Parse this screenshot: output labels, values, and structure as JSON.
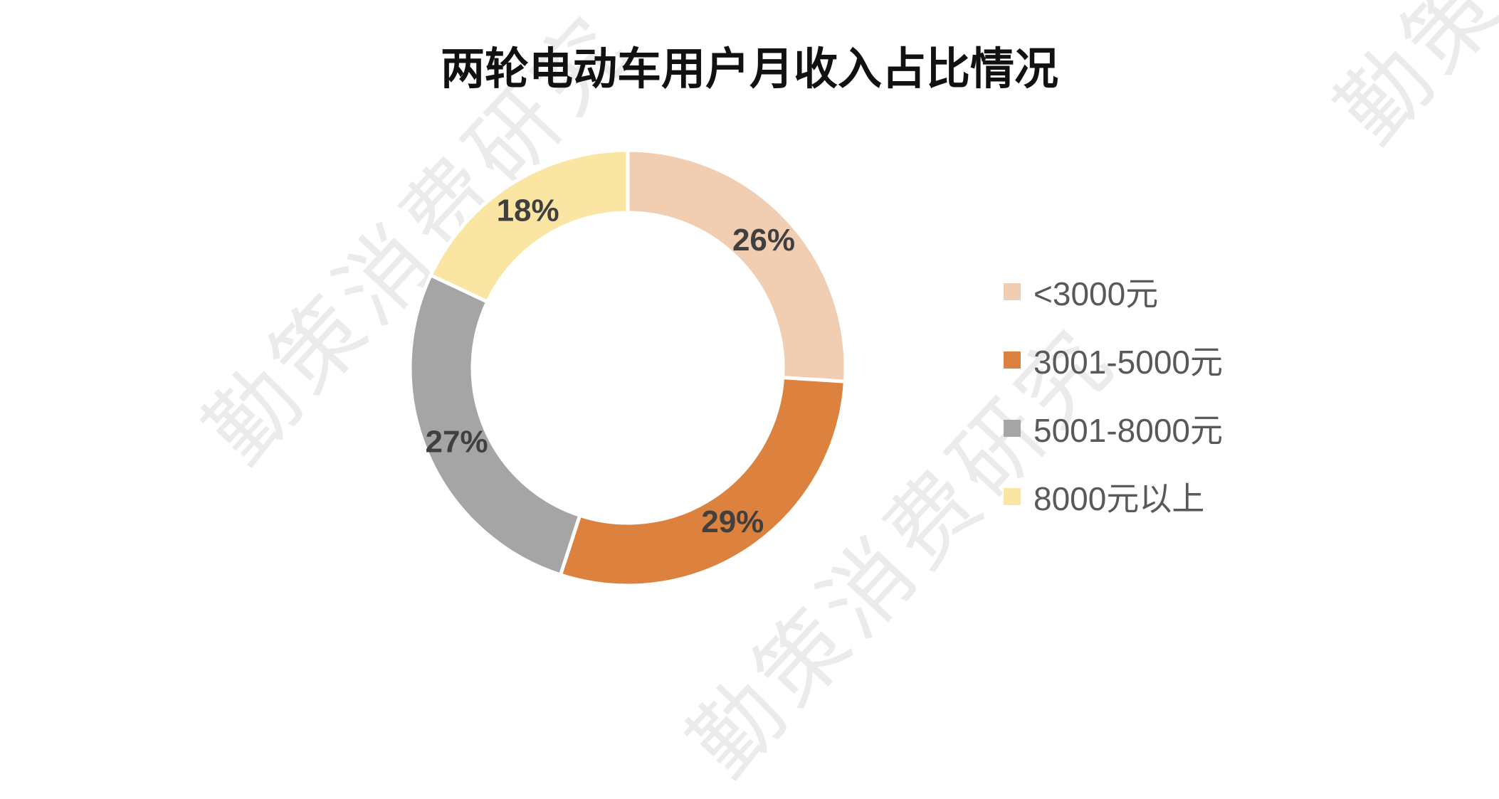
{
  "chart_data": {
    "type": "pie",
    "title": "两轮电动车用户月收入占比情况",
    "categories": [
      "<3000元",
      "3001-5000元",
      "5001-8000元",
      "8000元以上"
    ],
    "values": [
      26,
      29,
      27,
      18
    ],
    "data_labels": [
      "26%",
      "29%",
      "27%",
      "18%"
    ],
    "colors": [
      "#F1CDB1",
      "#DC823E",
      "#A5A5A5",
      "#FAE5A2"
    ],
    "legend_position": "right"
  },
  "watermark": "勤策消费研究"
}
